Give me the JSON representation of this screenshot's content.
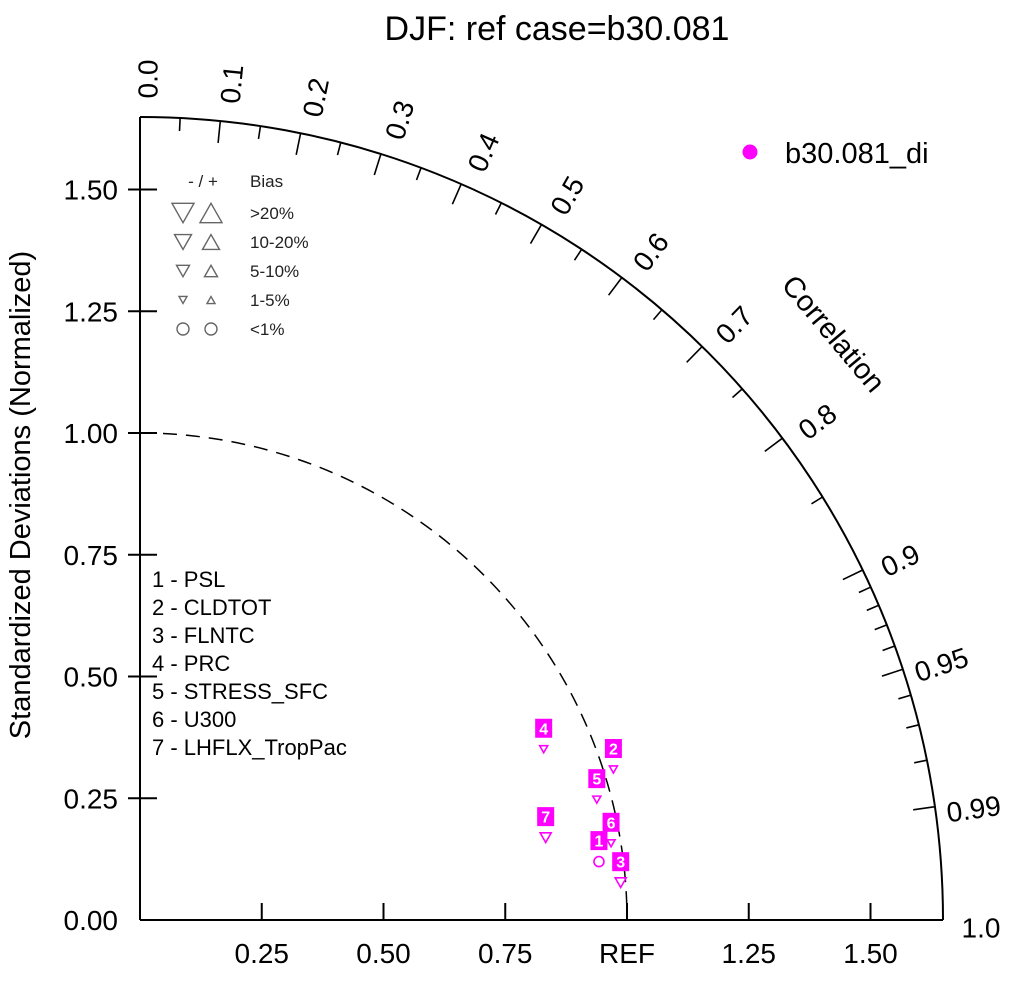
{
  "chart_data": {
    "type": "scatter",
    "variant": "taylor_diagram",
    "title": "DJF: ref case=b30.081",
    "ylabel": "Standardized Deviations (Normalized)",
    "angular_label": "Correlation",
    "y_tick_labels": [
      "0.00",
      "0.25",
      "0.50",
      "0.75",
      "1.00",
      "1.25",
      "1.50"
    ],
    "x_tick_labels": [
      "0.25",
      "0.50",
      "0.75",
      "REF",
      "1.25",
      "1.50"
    ],
    "std_dev_range": [
      0,
      1.65
    ],
    "reference_std_dev": 1.0,
    "reference_label": "REF",
    "correlation_labels": [
      {
        "value": 0.0,
        "text": "0.0"
      },
      {
        "value": 0.1,
        "text": "0.1"
      },
      {
        "value": 0.2,
        "text": "0.2"
      },
      {
        "value": 0.3,
        "text": "0.3"
      },
      {
        "value": 0.4,
        "text": "0.4"
      },
      {
        "value": 0.5,
        "text": "0.5"
      },
      {
        "value": 0.6,
        "text": "0.6"
      },
      {
        "value": 0.7,
        "text": "0.7"
      },
      {
        "value": 0.8,
        "text": "0.8"
      },
      {
        "value": 0.9,
        "text": "0.9"
      },
      {
        "value": 0.95,
        "text": "0.95"
      },
      {
        "value": 0.99,
        "text": "0.99"
      },
      {
        "value": 1.0,
        "text": "1.0"
      }
    ],
    "correlation_major_ticks": [
      0.1,
      0.2,
      0.3,
      0.4,
      0.5,
      0.6,
      0.7,
      0.8,
      0.9,
      0.95,
      0.99
    ],
    "correlation_minor_ticks": [
      0.05,
      0.15,
      0.25,
      0.35,
      0.45,
      0.55,
      0.65,
      0.75,
      0.85,
      0.91,
      0.92,
      0.93,
      0.94,
      0.96,
      0.97,
      0.98
    ],
    "grid": "reference-arc-dashed",
    "legend_position": "top-right",
    "series": [
      {
        "name": "b30.081_di",
        "color": "#ff00ff",
        "points": [
          {
            "id": 1,
            "variable": "PSL",
            "std_dev": 0.95,
            "correlation": 0.992,
            "bias": "<1%",
            "bias_sign": "negative"
          },
          {
            "id": 2,
            "variable": "CLDTOT",
            "std_dev": 1.02,
            "correlation": 0.953,
            "bias": "1-5%",
            "bias_sign": "negative"
          },
          {
            "id": 3,
            "variable": "FLNTC",
            "std_dev": 0.99,
            "correlation": 0.997,
            "bias": "5-10%",
            "bias_sign": "negative"
          },
          {
            "id": 4,
            "variable": "PRC",
            "std_dev": 0.9,
            "correlation": 0.921,
            "bias": "1-5%",
            "bias_sign": "negative"
          },
          {
            "id": 5,
            "variable": "STRESS_SFC",
            "std_dev": 0.97,
            "correlation": 0.967,
            "bias": "1-5%",
            "bias_sign": "negative"
          },
          {
            "id": 6,
            "variable": "U300",
            "std_dev": 0.98,
            "correlation": 0.987,
            "bias": "1-5%",
            "bias_sign": "negative"
          },
          {
            "id": 7,
            "variable": "LHFLX_TropPac",
            "std_dev": 0.85,
            "correlation": 0.98,
            "bias": "5-10%",
            "bias_sign": "negative"
          }
        ]
      }
    ]
  },
  "bias_legend": {
    "sign_header": "- / +",
    "header": "Bias",
    "rows": [
      {
        "label": ">20%",
        "marker": "triangle-pair",
        "size_rank": 1
      },
      {
        "label": "10-20%",
        "marker": "triangle-pair",
        "size_rank": 2
      },
      {
        "label": "5-10%",
        "marker": "triangle-pair",
        "size_rank": 3
      },
      {
        "label": "1-5%",
        "marker": "triangle-pair",
        "size_rank": 4
      },
      {
        "label": "<1%",
        "marker": "circle-pair",
        "size_rank": 5
      }
    ],
    "marker_color": "#666666"
  },
  "colors": {
    "series": "#ff00ff",
    "axis": "#000000",
    "background": "#ffffff"
  }
}
